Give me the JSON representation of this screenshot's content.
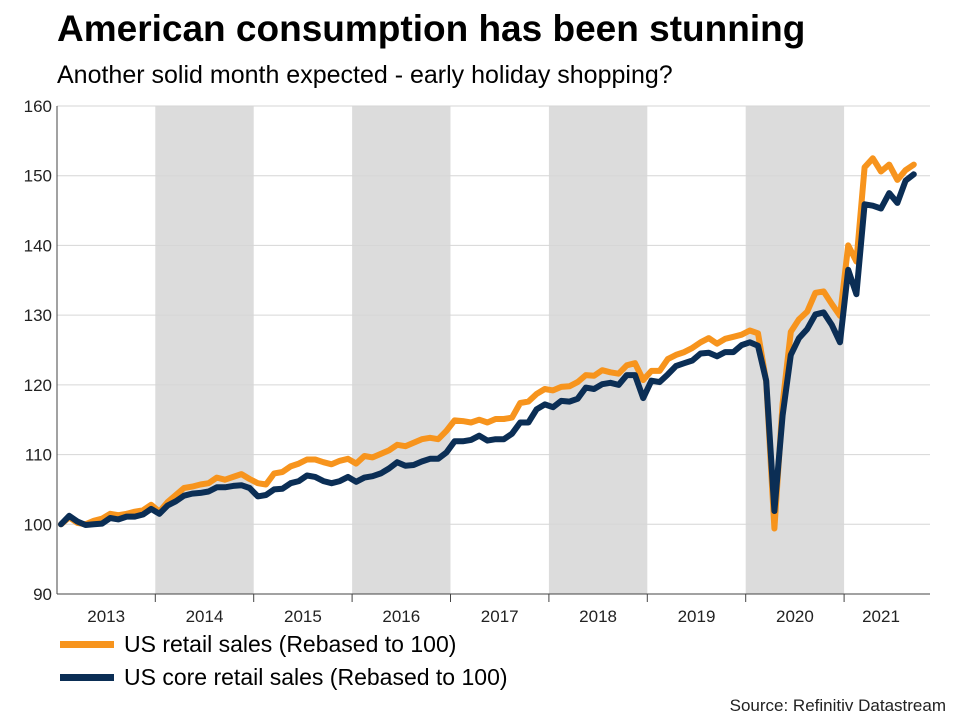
{
  "title": "American consumption has been stunning",
  "subtitle": "Another solid month expected - early holiday shopping?",
  "source": "Source: Refinitiv Datastream",
  "colors": {
    "retail": "#F7941D",
    "core": "#0B2E55",
    "shade": "#DCDCDC",
    "grid": "#D6D6D6"
  },
  "chart_data": {
    "type": "line",
    "title": "American consumption has been stunning",
    "xlabel": "",
    "ylabel": "",
    "ylim": [
      90,
      160
    ],
    "yticks": [
      90,
      100,
      110,
      120,
      130,
      140,
      150,
      160
    ],
    "year_labels": [
      "2013",
      "2014",
      "2015",
      "2016",
      "2017",
      "2018",
      "2019",
      "2020",
      "2021"
    ],
    "shaded_years": [
      "2014",
      "2016",
      "2018",
      "2020"
    ],
    "x_start": "2013-01",
    "frequency": "monthly",
    "legend_position": "bottom-left",
    "series": [
      {
        "name": "US retail sales (Rebased to 100)",
        "color_key": "retail",
        "values": [
          100,
          101,
          100.2,
          100,
          100.5,
          100.8,
          101.5,
          101.3,
          101.5,
          101.8,
          102,
          102.8,
          101.8,
          103.2,
          104.2,
          105.2,
          105.4,
          105.7,
          105.9,
          106.7,
          106.4,
          106.8,
          107.2,
          106.5,
          105.9,
          105.7,
          107.3,
          107.5,
          108.3,
          108.7,
          109.3,
          109.3,
          108.9,
          108.6,
          109.1,
          109.4,
          108.7,
          109.8,
          109.6,
          110.1,
          110.6,
          111.4,
          111.2,
          111.7,
          112.2,
          112.4,
          112.2,
          113.4,
          114.9,
          114.8,
          114.6,
          115,
          114.6,
          115.1,
          115.1,
          115.3,
          117.4,
          117.6,
          118.7,
          119.4,
          119.2,
          119.7,
          119.8,
          120.4,
          121.4,
          121.3,
          122.1,
          121.8,
          121.6,
          122.8,
          123.1,
          120.7,
          122,
          122,
          123.7,
          124.3,
          124.7,
          125.3,
          126.1,
          126.7,
          125.9,
          126.6,
          126.9,
          127.2,
          127.8,
          127.4,
          120.5,
          99.4,
          117.3,
          127.6,
          129.4,
          130.5,
          133.2,
          133.4,
          131.6,
          129.9,
          140,
          137.7,
          151.2,
          152.5,
          150.6,
          151.6,
          149.4,
          150.8,
          151.6
        ]
      },
      {
        "name": "US core retail sales (Rebased to 100)",
        "color_key": "core",
        "values": [
          100,
          101.2,
          100.4,
          99.9,
          100,
          100.1,
          100.9,
          100.7,
          101.1,
          101.1,
          101.4,
          102.2,
          101.5,
          102.7,
          103.3,
          104.1,
          104.4,
          104.5,
          104.7,
          105.3,
          105.3,
          105.5,
          105.6,
          105.2,
          104,
          104.2,
          105,
          105.1,
          105.9,
          106.2,
          107,
          106.8,
          106.2,
          105.9,
          106.2,
          106.8,
          106.1,
          106.7,
          106.9,
          107.3,
          108,
          108.9,
          108.4,
          108.5,
          109,
          109.4,
          109.4,
          110.3,
          111.9,
          111.9,
          112.1,
          112.7,
          112,
          112.2,
          112.2,
          113,
          114.6,
          114.6,
          116.5,
          117.2,
          116.8,
          117.7,
          117.6,
          118,
          119.6,
          119.4,
          120.1,
          120.3,
          120,
          121.4,
          121.4,
          118.1,
          120.6,
          120.4,
          121.5,
          122.7,
          123.1,
          123.5,
          124.5,
          124.6,
          124.1,
          124.7,
          124.7,
          125.7,
          126.1,
          125.6,
          120.6,
          101.9,
          115.6,
          124.3,
          126.7,
          128,
          130.1,
          130.4,
          128.6,
          126.1,
          136.5,
          133,
          145.9,
          145.7,
          145.3,
          147.5,
          146.1,
          149.3,
          150.2
        ]
      }
    ]
  }
}
